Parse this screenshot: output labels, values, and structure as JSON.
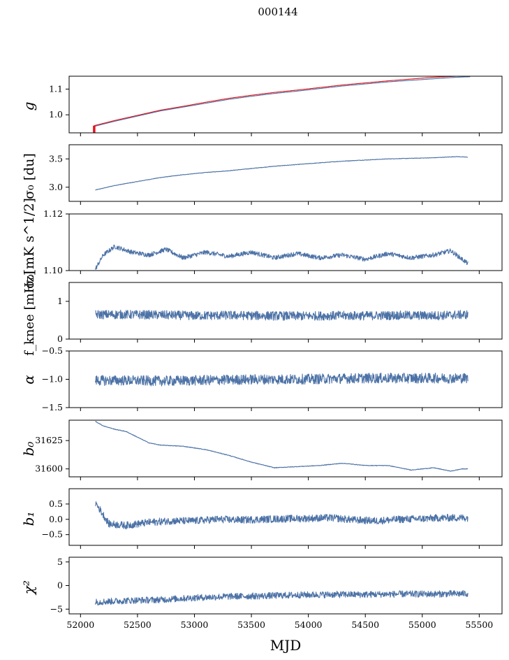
{
  "figure": {
    "title": "000144",
    "xlabel": "MJD",
    "xlim": [
      51900,
      55700
    ],
    "xticks": [
      52000,
      52500,
      53000,
      53500,
      54000,
      54500,
      55000,
      55500
    ]
  },
  "colors": {
    "series": "#4c72a6",
    "fit": "#e8141c",
    "axes": "#000000"
  },
  "chart_data": [
    {
      "type": "line",
      "ylabel": "g",
      "ylim": [
        0.93,
        1.15
      ],
      "yticks": [
        1.0,
        1.1
      ],
      "ytick_labels": [
        "1.0",
        "1.1"
      ],
      "series": [
        {
          "x": [
            52120,
            52300,
            52500,
            52700,
            52900,
            53100,
            53300,
            53500,
            53700,
            53900,
            54100,
            54300,
            54500,
            54700,
            54900,
            55100,
            55300,
            55420
          ],
          "y": [
            0.955,
            0.975,
            0.995,
            1.015,
            1.03,
            1.045,
            1.06,
            1.072,
            1.083,
            1.092,
            1.102,
            1.112,
            1.12,
            1.128,
            1.134,
            1.14,
            1.146,
            1.148
          ]
        },
        {
          "x": [
            52120,
            52300,
            52500,
            52700,
            52900,
            53100,
            53300,
            53500,
            53700,
            53900,
            54100,
            54300,
            54500,
            54700,
            54900,
            55100,
            55300,
            55420
          ],
          "y": [
            0.958,
            0.978,
            0.998,
            1.018,
            1.033,
            1.049,
            1.064,
            1.076,
            1.087,
            1.096,
            1.106,
            1.116,
            1.124,
            1.132,
            1.139,
            1.146,
            1.15,
            1.152
          ]
        }
      ]
    },
    {
      "type": "line",
      "ylabel": "σ₀ [du]",
      "ylim": [
        2.75,
        3.75
      ],
      "yticks": [
        3.0,
        3.5
      ],
      "ytick_labels": [
        "3.0",
        "3.5"
      ],
      "series": [
        {
          "x": [
            52130,
            52300,
            52500,
            52700,
            52900,
            53100,
            53300,
            53500,
            53700,
            53900,
            54100,
            54300,
            54500,
            54700,
            54900,
            55100,
            55300,
            55400
          ],
          "y": [
            2.95,
            3.03,
            3.1,
            3.17,
            3.22,
            3.26,
            3.29,
            3.33,
            3.37,
            3.4,
            3.43,
            3.46,
            3.48,
            3.5,
            3.51,
            3.52,
            3.54,
            3.53
          ]
        }
      ]
    },
    {
      "type": "line",
      "ylabel": "σ₀[mK s^1/2]",
      "ylim": [
        1.1,
        1.12
      ],
      "yticks": [
        1.1,
        1.12
      ],
      "ytick_labels": [
        "1.10",
        "1.12"
      ],
      "series": [
        {
          "x": [
            52130,
            52200,
            52300,
            52450,
            52600,
            52750,
            52900,
            53100,
            53300,
            53500,
            53700,
            53900,
            54100,
            54300,
            54500,
            54700,
            54900,
            55100,
            55250,
            55350,
            55400
          ],
          "y": [
            1.1005,
            1.1055,
            1.1085,
            1.1065,
            1.1055,
            1.1075,
            1.1045,
            1.1065,
            1.105,
            1.1065,
            1.1045,
            1.106,
            1.1045,
            1.1055,
            1.104,
            1.106,
            1.1045,
            1.1055,
            1.107,
            1.104,
            1.1025
          ]
        }
      ]
    },
    {
      "type": "line",
      "ylabel": "f_knee [mHz]",
      "ylim": [
        0,
        1.5
      ],
      "yticks": [
        0,
        1
      ],
      "ytick_labels": [
        "0",
        "1"
      ],
      "series": [
        {
          "x": [
            52130,
            52400,
            52700,
            53000,
            53300,
            53600,
            53900,
            54200,
            54500,
            54800,
            55100,
            55400
          ],
          "y": [
            0.65,
            0.65,
            0.64,
            0.62,
            0.63,
            0.62,
            0.61,
            0.62,
            0.62,
            0.63,
            0.62,
            0.65
          ]
        }
      ]
    },
    {
      "type": "line",
      "ylabel": "α",
      "ylim": [
        -1.5,
        -0.5
      ],
      "yticks": [
        -1.5,
        -1.0,
        -0.5
      ],
      "ytick_labels": [
        "−1.5",
        "−1.0",
        "−0.5"
      ],
      "series": [
        {
          "x": [
            52130,
            52400,
            52700,
            53000,
            53300,
            53600,
            53900,
            54200,
            54500,
            54800,
            55100,
            55400
          ],
          "y": [
            -1.02,
            -1.02,
            -1.03,
            -1.02,
            -1.01,
            -1.0,
            -1.0,
            -0.99,
            -0.98,
            -0.98,
            -0.98,
            -0.98
          ]
        }
      ]
    },
    {
      "type": "line",
      "ylabel": "b₀",
      "ylim": [
        31593,
        31643
      ],
      "yticks": [
        31600,
        31625
      ],
      "ytick_labels": [
        "31600",
        "31625"
      ],
      "series": [
        {
          "x": [
            52130,
            52200,
            52300,
            52400,
            52500,
            52600,
            52700,
            52900,
            53100,
            53300,
            53500,
            53700,
            53900,
            54100,
            54300,
            54500,
            54700,
            54900,
            55000,
            55100,
            55250,
            55350,
            55400
          ],
          "y": [
            31642,
            31638,
            31635,
            31633,
            31628,
            31623,
            31621,
            31620,
            31617,
            31612,
            31606,
            31601,
            31602,
            31603,
            31605,
            31603,
            31603,
            31599,
            31600,
            31601,
            31598,
            31600,
            31600
          ]
        }
      ]
    },
    {
      "type": "line",
      "ylabel": "b₁",
      "ylim": [
        -0.85,
        1.0
      ],
      "yticks": [
        -0.5,
        0.0,
        0.5
      ],
      "ytick_labels": [
        "−0.5",
        "0.0",
        "0.5"
      ],
      "series": [
        {
          "x": [
            52130,
            52250,
            52400,
            52600,
            52800,
            53000,
            53200,
            53400,
            53600,
            53800,
            54000,
            54200,
            54400,
            54600,
            54800,
            55000,
            55200,
            55400
          ],
          "y": [
            0.55,
            -0.15,
            -0.2,
            -0.1,
            -0.05,
            -0.05,
            0.0,
            -0.02,
            0.0,
            0.02,
            0.03,
            0.05,
            -0.02,
            -0.05,
            0.0,
            0.02,
            0.05,
            0.05
          ]
        }
      ]
    },
    {
      "type": "line",
      "ylabel": "χ²",
      "ylim": [
        -6,
        6
      ],
      "yticks": [
        -5,
        0,
        5
      ],
      "ytick_labels": [
        "−5",
        "0",
        "5"
      ],
      "series": [
        {
          "x": [
            52130,
            52400,
            52700,
            53000,
            53300,
            53600,
            53900,
            54200,
            54500,
            54800,
            55100,
            55400
          ],
          "y": [
            -3.5,
            -3.2,
            -3.0,
            -2.6,
            -2.3,
            -2.2,
            -2.0,
            -1.9,
            -1.9,
            -1.8,
            -1.8,
            -1.7
          ]
        }
      ]
    }
  ]
}
